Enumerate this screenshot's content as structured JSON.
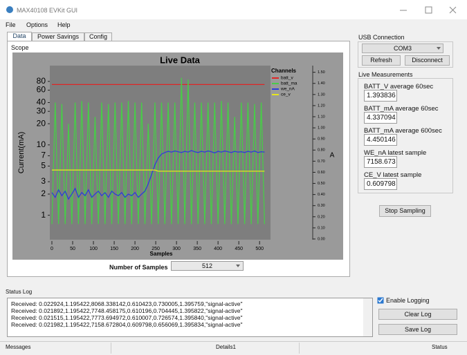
{
  "window": {
    "title": "MAX40108 EVKit GUI"
  },
  "menu": [
    "File",
    "Options",
    "Help"
  ],
  "tabs": [
    "Data",
    "Power Savings",
    "Config"
  ],
  "scope": {
    "label": "Scope",
    "samples_label": "Number of Samples",
    "samples_value": "512"
  },
  "chart_data": {
    "type": "line",
    "title": "Live Data",
    "x_label": "Samples",
    "y_label": "Current(mA)",
    "y2_label": "A",
    "legend_title": "Channels",
    "legend": "right",
    "y_log": true,
    "x": [
      0,
      8,
      16,
      24,
      32,
      40,
      48,
      56,
      64,
      72,
      80,
      88,
      96,
      104,
      112,
      120,
      128,
      136,
      144,
      152,
      160,
      168,
      176,
      184,
      192,
      200,
      208,
      216,
      224,
      232,
      240,
      248,
      256,
      264,
      272,
      280,
      288,
      296,
      304,
      312,
      320,
      328,
      336,
      344,
      352,
      360,
      368,
      376,
      384,
      392,
      400,
      408,
      416,
      424,
      432,
      440,
      448,
      456,
      464,
      472,
      480,
      488,
      496,
      504,
      512
    ],
    "series": [
      {
        "name": "batt_v",
        "color": "#e02424",
        "axis": "y2",
        "values": [
          1.39,
          1.39,
          1.39,
          1.39,
          1.39,
          1.39,
          1.39,
          1.39,
          1.39,
          1.39,
          1.39,
          1.39,
          1.39,
          1.39,
          1.39,
          1.39,
          1.39,
          1.39,
          1.39,
          1.39,
          1.39,
          1.39,
          1.39,
          1.39,
          1.39,
          1.39,
          1.39,
          1.39,
          1.39,
          1.39,
          1.39,
          1.39,
          1.39,
          1.39,
          1.39,
          1.39,
          1.39,
          1.39,
          1.39,
          1.39,
          1.39,
          1.39,
          1.39,
          1.39,
          1.39,
          1.39,
          1.39,
          1.39,
          1.39,
          1.39,
          1.39,
          1.39,
          1.39,
          1.39,
          1.39,
          1.39,
          1.39,
          1.39,
          1.39,
          1.39,
          1.39,
          1.39,
          1.39,
          1.39,
          1.39
        ]
      },
      {
        "name": "batt_ma",
        "color": "#48cc48",
        "values": [
          0.75,
          40,
          0.75,
          38,
          0.75,
          20,
          0.75,
          40,
          0.75,
          42,
          0.75,
          40,
          0.75,
          25,
          0.75,
          40,
          0.75,
          38,
          0.75,
          40,
          0.75,
          40,
          0.75,
          42,
          0.75,
          40,
          0.75,
          40,
          0.75,
          20,
          0.75,
          40,
          0.75,
          40,
          0.75,
          40,
          0.75,
          40,
          0.75,
          90,
          0.75,
          85,
          0.75,
          40,
          0.75,
          40,
          0.75,
          40,
          0.75,
          40,
          0.75,
          42,
          0.75,
          40,
          0.75,
          25,
          0.75,
          40,
          0.75,
          40,
          0.75,
          38,
          0.75,
          40,
          0.75
        ]
      },
      {
        "name": "we_nA",
        "color": "#2c3ed8",
        "values": [
          2.1,
          1.8,
          2.3,
          1.9,
          2.2,
          1.7,
          2.0,
          2.4,
          1.8,
          2.1,
          1.9,
          2.3,
          1.8,
          2.0,
          2.2,
          1.9,
          2.1,
          1.8,
          2.2,
          2.0,
          1.9,
          2.1,
          1.8,
          2.0,
          1.9,
          2.1,
          1.8,
          2.0,
          2.2,
          2.8,
          3.8,
          5.2,
          6.5,
          7.4,
          7.8,
          8.1,
          7.9,
          8.2,
          8.0,
          7.8,
          8.1,
          7.9,
          8.3,
          8.0,
          7.8,
          8.1,
          7.9,
          8.2,
          8.0,
          7.7,
          8.1,
          7.9,
          8.2,
          8.0,
          7.8,
          8.1,
          7.9,
          8.0,
          7.8,
          8.1,
          7.9,
          8.2,
          7.8,
          8.0,
          7.9
        ]
      },
      {
        "name": "ce_v",
        "color": "#e6e61c",
        "axis": "y2",
        "values": [
          0.62,
          0.62,
          0.62,
          0.62,
          0.62,
          0.62,
          0.62,
          0.62,
          0.62,
          0.62,
          0.62,
          0.62,
          0.62,
          0.62,
          0.62,
          0.62,
          0.62,
          0.62,
          0.62,
          0.62,
          0.62,
          0.62,
          0.62,
          0.62,
          0.62,
          0.62,
          0.62,
          0.62,
          0.62,
          0.62,
          0.62,
          0.62,
          0.61,
          0.61,
          0.61,
          0.61,
          0.61,
          0.61,
          0.61,
          0.61,
          0.61,
          0.61,
          0.61,
          0.61,
          0.61,
          0.61,
          0.61,
          0.61,
          0.61,
          0.61,
          0.61,
          0.61,
          0.61,
          0.61,
          0.61,
          0.61,
          0.61,
          0.61,
          0.61,
          0.61,
          0.61,
          0.61,
          0.61,
          0.61,
          0.61
        ]
      }
    ],
    "xlim": [
      0,
      523
    ],
    "xticks": [
      0,
      50,
      100,
      150,
      200,
      250,
      300,
      350,
      400,
      450,
      500
    ],
    "ylim": [
      0.46,
      134
    ],
    "yticks": [
      1,
      2,
      3,
      5,
      7,
      10,
      20,
      30,
      40,
      60,
      80
    ],
    "y2lim": [
      0,
      1.56
    ],
    "y2ticks": [
      {
        "value": 0,
        "label": "0.00"
      },
      {
        "value": 0.1,
        "label": "0.10"
      },
      {
        "value": 0.2,
        "label": "0.20"
      },
      {
        "value": 0.3,
        "label": "0.30"
      },
      {
        "value": 0.4,
        "label": "0.40"
      },
      {
        "value": 0.5,
        "label": "0.50"
      },
      {
        "value": 0.6,
        "label": "0.60"
      },
      {
        "value": 0.7,
        "label": "0.70"
      },
      {
        "value": 0.8,
        "label": "0.80"
      },
      {
        "value": 0.9,
        "label": "0.90"
      },
      {
        "value": 1,
        "label": "1.00"
      },
      {
        "value": 1.1,
        "label": "1.10"
      },
      {
        "value": 1.2,
        "label": "1.20"
      },
      {
        "value": 1.3,
        "label": "1.30"
      },
      {
        "value": 1.4,
        "label": "1.40"
      },
      {
        "value": 1.5,
        "label": "1.50"
      }
    ]
  },
  "usb": {
    "label": "USB Connection",
    "port": "COM3",
    "buttons": [
      "Refresh",
      "Disconnect"
    ]
  },
  "live": {
    "label": "Live Measurements",
    "items": [
      {
        "label": "BATT_V average 60sec",
        "value": "1.393836"
      },
      {
        "label": "BATT_mA average 60sec",
        "value": "4.337094"
      },
      {
        "label": "BATT_mA average 600sec",
        "value": "4.450146"
      },
      {
        "label": "WE_nA latest sample",
        "value": "7158.673"
      },
      {
        "label": "CE_V latest sample",
        "value": "0.609798"
      }
    ]
  },
  "stop_button": "Stop Sampling",
  "status_log": {
    "label": "Status Log",
    "lines": [
      "Received: 0.022924,1.195422,8068.338142,0.610423,0.730005,1.395759,\"signal-active\"",
      "Received: 0.021892,1.195422,7748.458175,0.610196,0.704445,1.395822,\"signal-active\"",
      "Received: 0.021515,1.195422,7773.694972,0.610007,0.726574,1.395840,\"signal-active\"",
      "Received: 0.021982,1.195422,7158.672804,0.609798,0.656069,1.395834,\"signal-active\""
    ],
    "enable_logging": "Enable Logging",
    "buttons": [
      "Clear Log",
      "Save Log"
    ]
  },
  "status_bar": [
    "Messages",
    "Details1",
    "Status"
  ]
}
